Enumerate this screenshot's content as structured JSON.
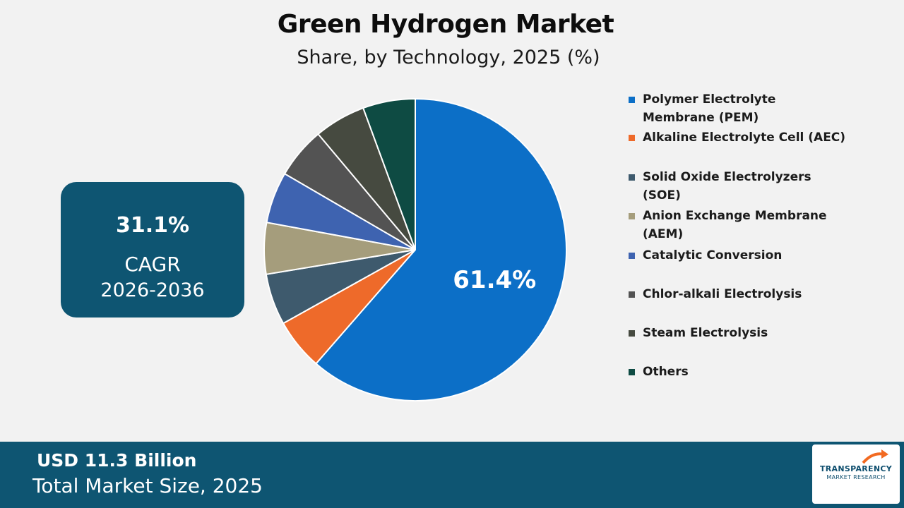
{
  "chart_data": {
    "type": "pie",
    "title": "Green Hydrogen Market",
    "subtitle": "Share, by Technology, 2025 (%)",
    "slices": [
      {
        "label": "Polymer Electrolyte Membrane (PEM)",
        "value": 61.4,
        "color": "#0c6fc7",
        "data_label": "61.4%"
      },
      {
        "label": "Alkaline Electrolyte Cell (AEC)",
        "value": 5.5,
        "color": "#ee6a2a"
      },
      {
        "label": "Solid Oxide Electrolyzers (SOE)",
        "value": 5.5,
        "color": "#3e5a6d"
      },
      {
        "label": "Anion Exchange Membrane (AEM)",
        "value": 5.5,
        "color": "#a59d7c"
      },
      {
        "label": "Catalytic Conversion",
        "value": 5.5,
        "color": "#3e63b0"
      },
      {
        "label": "Chlor-alkali Electrolysis",
        "value": 5.5,
        "color": "#535353"
      },
      {
        "label": "Steam Electrolysis",
        "value": 5.5,
        "color": "#464a40"
      },
      {
        "label": "Others",
        "value": 5.6,
        "color": "#0e4b43"
      }
    ],
    "legend_position": "right"
  },
  "legend_items": [
    {
      "lines": [
        "Polymer Electrolyte",
        "Membrane (PEM)"
      ],
      "color": "#0c6fc7"
    },
    {
      "lines": [
        "Alkaline Electrolyte Cell (AEC)"
      ],
      "color": "#ee6a2a"
    },
    {
      "lines": [
        "Solid Oxide Electrolyzers",
        "(SOE)"
      ],
      "color": "#3e5a6d"
    },
    {
      "lines": [
        "Anion Exchange Membrane",
        "(AEM)"
      ],
      "color": "#a59d7c"
    },
    {
      "lines": [
        "Catalytic Conversion"
      ],
      "color": "#3e63b0"
    },
    {
      "lines": [
        "Chlor-alkali Electrolysis"
      ],
      "color": "#535353"
    },
    {
      "lines": [
        "Steam Electrolysis"
      ],
      "color": "#464a40"
    },
    {
      "lines": [
        "Others"
      ],
      "color": "#0e4b43"
    }
  ],
  "cagr": {
    "value": "31.1%",
    "label": "CAGR",
    "period": "2026-2036"
  },
  "footer": {
    "value": "USD 11.3 Billion",
    "label": "Total Market Size, 2025"
  },
  "logo": {
    "line1": "TRANSPARENCY",
    "line2": "MARKET RESEARCH"
  },
  "colors": {
    "brand_dark": "#0e5572",
    "background": "#f2f2f2",
    "logo_accent": "#f26a21"
  }
}
